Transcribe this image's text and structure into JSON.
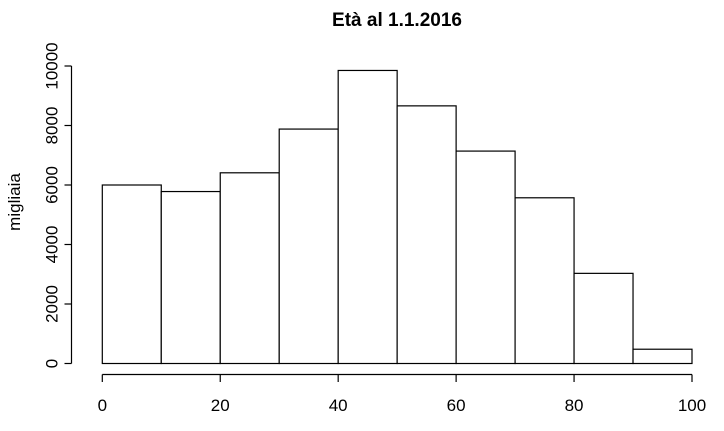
{
  "chart_data": {
    "type": "bar",
    "chart_kind": "histogram",
    "title": "Età al 1.1.2016",
    "xlabel": "",
    "ylabel": "migliaia",
    "bin_edges": [
      0,
      10,
      20,
      30,
      40,
      50,
      60,
      70,
      80,
      90,
      100
    ],
    "categories": [
      "0-10",
      "10-20",
      "20-30",
      "30-40",
      "40-50",
      "50-60",
      "60-70",
      "70-80",
      "80-90",
      "90-100"
    ],
    "values": [
      6000,
      5780,
      6410,
      7880,
      9850,
      8660,
      7140,
      5570,
      3030,
      480
    ],
    "x_ticks": [
      0,
      20,
      40,
      60,
      80,
      100
    ],
    "y_ticks": [
      0,
      2000,
      4000,
      6000,
      8000,
      10000
    ],
    "xlim": [
      0,
      100
    ],
    "ylim": [
      0,
      10000
    ],
    "grid": false,
    "legend": "none",
    "colors": {
      "bar_fill": "#ffffff",
      "bar_stroke": "#000000",
      "axis": "#000000",
      "text": "#000000",
      "background": "#ffffff"
    }
  }
}
